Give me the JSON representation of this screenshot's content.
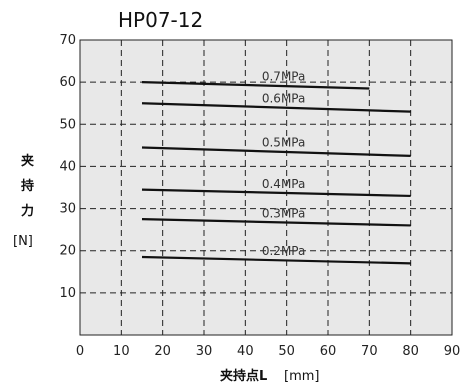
{
  "chart_data": {
    "type": "line",
    "title": "HP07-12",
    "xlabel_main": "夹持点L",
    "xlabel_unit": "[mm]",
    "ylabel_chars": [
      "夹",
      "持",
      "力"
    ],
    "ylabel_unit": "[N]",
    "xlim": [
      0,
      90
    ],
    "ylim": [
      0,
      70
    ],
    "x_ticks": [
      "0",
      "10",
      "20",
      "30",
      "40",
      "50",
      "60",
      "70",
      "80",
      "90"
    ],
    "y_ticks": [
      "10",
      "20",
      "30",
      "40",
      "50",
      "60",
      "70"
    ],
    "grid": true,
    "series": [
      {
        "name": "0.7MPa",
        "x": [
          15,
          70
        ],
        "y": [
          60,
          58.5
        ]
      },
      {
        "name": "0.6MPa",
        "x": [
          15,
          80
        ],
        "y": [
          55,
          53
        ]
      },
      {
        "name": "0.5MPa",
        "x": [
          15,
          80
        ],
        "y": [
          44.5,
          42.5
        ]
      },
      {
        "name": "0.4MPa",
        "x": [
          15,
          80
        ],
        "y": [
          34.5,
          33
        ]
      },
      {
        "name": "0.3MPa",
        "x": [
          15,
          80
        ],
        "y": [
          27.5,
          26
        ]
      },
      {
        "name": "0.2MPa",
        "x": [
          15,
          80
        ],
        "y": [
          18.5,
          17
        ]
      }
    ]
  }
}
